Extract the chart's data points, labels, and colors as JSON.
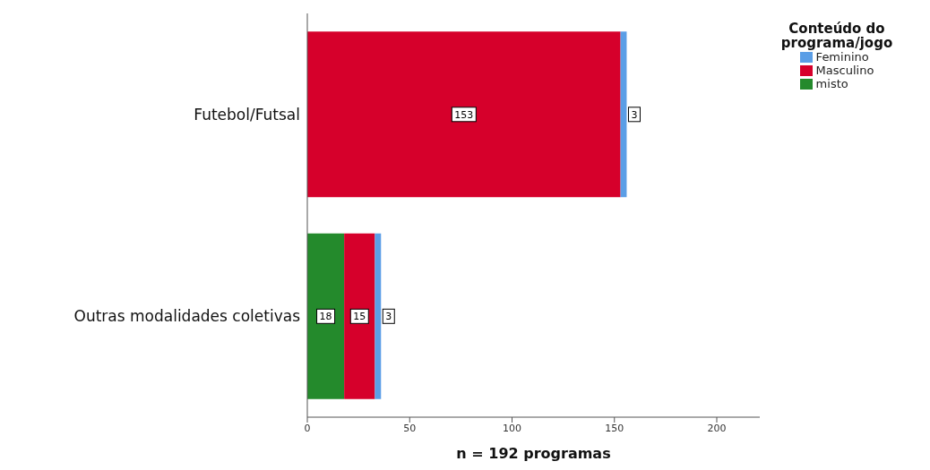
{
  "chart_data": {
    "type": "bar",
    "orientation": "horizontal",
    "stacked": true,
    "categories": [
      "Futebol/Futsal",
      "Outras modalidades coletivas"
    ],
    "series": [
      {
        "name": "misto",
        "color": "#248a2c",
        "values": [
          0,
          18
        ],
        "value_labels": [
          null,
          "18"
        ]
      },
      {
        "name": "Masculino",
        "color": "#d6002b",
        "values": [
          153,
          15
        ],
        "value_labels": [
          "153",
          "15"
        ]
      },
      {
        "name": "Feminino",
        "color": "#5b9ee6",
        "values": [
          3,
          3
        ],
        "value_labels": [
          "3",
          "3"
        ]
      }
    ],
    "xlim": [
      0,
      221
    ],
    "xticks": [
      0,
      50,
      100,
      150,
      200
    ],
    "xlabel": "n = 192 programas",
    "legend_title": "Conteúdo do programa/jogo",
    "legend": "top right",
    "grid": false
  }
}
